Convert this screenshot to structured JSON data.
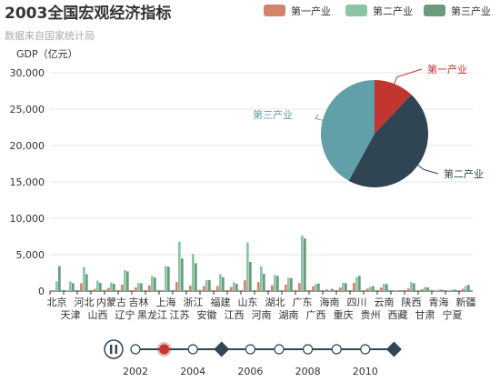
{
  "chart_data": [
    {
      "type": "bar",
      "title": "2003全国宏观经济指标",
      "subtitle": "数据来自国家统计局",
      "ylabel": "GDP（亿元）",
      "ylim": [
        0,
        30000
      ],
      "y_ticks": [
        "0",
        "5,000",
        "10,000",
        "15,000",
        "20,000",
        "25,000",
        "30,000"
      ],
      "y_tick_values": [
        0,
        5000,
        10000,
        15000,
        20000,
        25000,
        30000
      ],
      "legend_position": "top-right",
      "grid": true,
      "categories": [
        "北京",
        "天津",
        "河北",
        "山西",
        "内蒙古",
        "辽宁",
        "吉林",
        "黑龙江",
        "上海",
        "江苏",
        "浙江",
        "安徽",
        "福建",
        "江西",
        "山东",
        "河南",
        "湖北",
        "湖南",
        "广东",
        "广西",
        "海南",
        "重庆",
        "四川",
        "贵州",
        "云南",
        "西藏",
        "陕西",
        "甘肃",
        "青海",
        "宁夏",
        "新疆"
      ],
      "series": [
        {
          "name": "第一产业",
          "color": "#d4846a",
          "values": [
            95,
            90,
            1065,
            310,
            435,
            890,
            500,
            760,
            95,
            1230,
            740,
            690,
            690,
            565,
            1480,
            1230,
            800,
            890,
            1095,
            650,
            240,
            485,
            1125,
            335,
            500,
            35,
            350,
            255,
            70,
            80,
            325
          ]
        },
        {
          "name": "第二产业",
          "color": "#8cc4a6",
          "values": [
            1325,
            1315,
            3305,
            1430,
            1160,
            2895,
            1120,
            2090,
            3425,
            6790,
            5095,
            1505,
            2325,
            1210,
            6660,
            3390,
            2200,
            1835,
            7650,
            965,
            135,
            1140,
            1910,
            600,
            1015,
            40,
            1220,
            540,
            200,
            190,
            710
          ]
        },
        {
          "name": "第三产业",
          "color": "#6b9a7d",
          "values": [
            3435,
            1090,
            2315,
            1120,
            990,
            2700,
            1060,
            1860,
            3345,
            4480,
            3825,
            1515,
            1905,
            990,
            4010,
            2350,
            2085,
            1770,
            7235,
            1035,
            300,
            1080,
            2100,
            675,
            950,
            120,
            1060,
            520,
            195,
            210,
            840
          ]
        }
      ]
    },
    {
      "type": "pie",
      "title": "",
      "slices": [
        {
          "name": "第一产业",
          "value": 12,
          "color": "#c23531"
        },
        {
          "name": "第二产业",
          "value": 46,
          "color": "#2f4554"
        },
        {
          "name": "第三产业",
          "value": 42,
          "color": "#61a0a8"
        }
      ]
    }
  ],
  "timeline": {
    "labels": [
      "2002",
      "2004",
      "2006",
      "2008",
      "2010"
    ],
    "points": 10,
    "current_index": 1,
    "play_icon": "pause-icon",
    "active_color": "#c23531",
    "line_color": "#304654"
  }
}
